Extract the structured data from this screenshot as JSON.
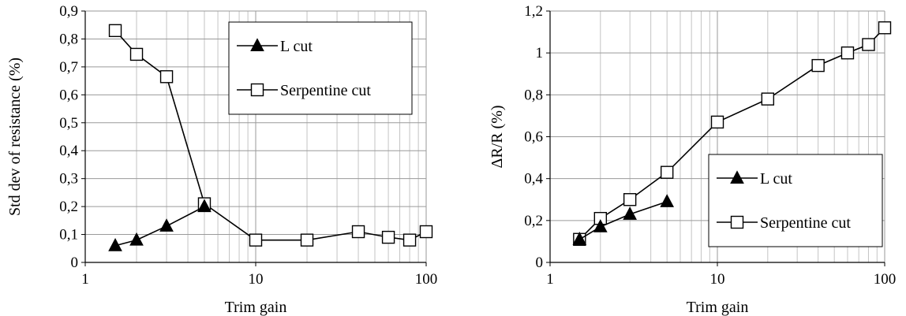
{
  "chart_data": [
    {
      "type": "line",
      "xscale": "log",
      "xlim": [
        1,
        100
      ],
      "ylim": [
        0,
        0.9
      ],
      "ystep": 0.1,
      "grid": true,
      "xlabel": "Trim gain",
      "ylabel": "Std dev of resistance (%)",
      "xticks": [
        "1",
        "10",
        "100"
      ],
      "yticks": [
        "0",
        "0,1",
        "0,2",
        "0,3",
        "0,4",
        "0,5",
        "0,6",
        "0,7",
        "0,8",
        "0,9"
      ],
      "legend_position": "top-right",
      "series": [
        {
          "name": "L cut",
          "marker": "filled-triangle",
          "x": [
            1.5,
            2,
            3,
            5
          ],
          "y": [
            0.06,
            0.08,
            0.13,
            0.2
          ]
        },
        {
          "name": "Serpentine cut",
          "marker": "open-square",
          "x": [
            1.5,
            2,
            3,
            5,
            10,
            20,
            40,
            60,
            80,
            100
          ],
          "y": [
            0.83,
            0.745,
            0.665,
            0.21,
            0.08,
            0.08,
            0.11,
            0.09,
            0.08,
            0.11
          ]
        }
      ]
    },
    {
      "type": "line",
      "xscale": "log",
      "xlim": [
        1,
        100
      ],
      "ylim": [
        0,
        1.2
      ],
      "ystep": 0.2,
      "grid": true,
      "xlabel": "Trim gain",
      "ylabel": "ΔR/R (%)",
      "xticks": [
        "1",
        "10",
        "100"
      ],
      "yticks": [
        "0",
        "0,2",
        "0,4",
        "0,6",
        "0,8",
        "1",
        "1,2"
      ],
      "legend_position": "bottom-right",
      "series": [
        {
          "name": "L cut",
          "marker": "filled-triangle",
          "x": [
            1.5,
            2,
            3,
            5
          ],
          "y": [
            0.11,
            0.17,
            0.23,
            0.29
          ]
        },
        {
          "name": "Serpentine cut",
          "marker": "open-square",
          "x": [
            1.5,
            2,
            3,
            5,
            10,
            20,
            40,
            60,
            80,
            100
          ],
          "y": [
            0.11,
            0.21,
            0.3,
            0.43,
            0.67,
            0.78,
            0.94,
            1.0,
            1.04,
            1.12
          ]
        }
      ]
    }
  ]
}
